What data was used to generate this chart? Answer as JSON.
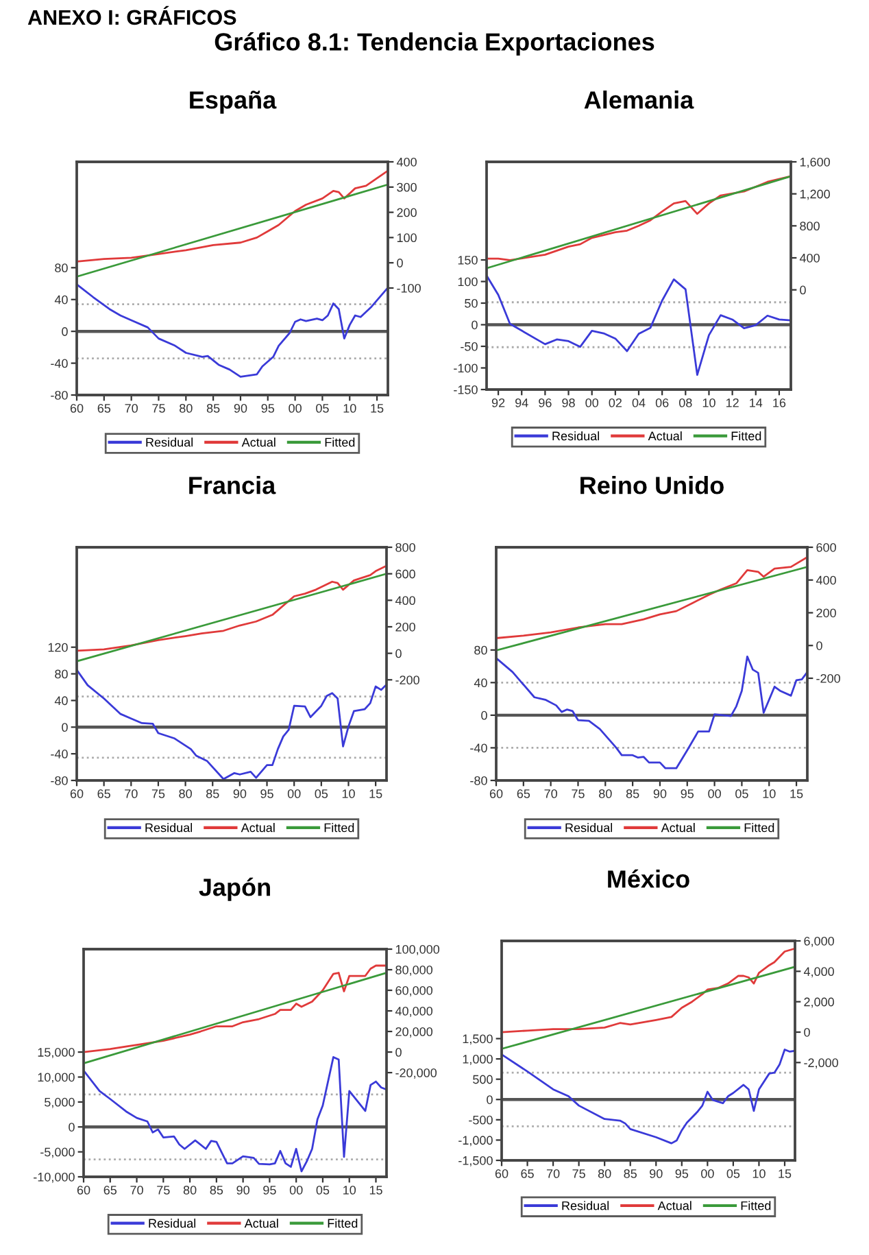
{
  "chart_data": [
    {
      "type": "other",
      "title": "Gráfico 8.1: Tendencia Exportaciones",
      "annotations": [
        "ANEXO I: GRÁFICOS"
      ]
    },
    {
      "type": "line",
      "title": "España",
      "xlim": [
        1960,
        2017
      ],
      "xticks": [
        {
          "value": 1960,
          "label": "60"
        },
        {
          "value": 1965,
          "label": "65"
        },
        {
          "value": 1970,
          "label": "70"
        },
        {
          "value": 1975,
          "label": "75"
        },
        {
          "value": 1980,
          "label": "80"
        },
        {
          "value": 1985,
          "label": "85"
        },
        {
          "value": 1990,
          "label": "90"
        },
        {
          "value": 1995,
          "label": "95"
        },
        {
          "value": 2000,
          "label": "00"
        },
        {
          "value": 2005,
          "label": "05"
        },
        {
          "value": 2010,
          "label": "10"
        },
        {
          "value": 2015,
          "label": "15"
        }
      ],
      "ylim": [
        -80,
        213
      ],
      "yticks": [
        -80,
        -40,
        0,
        40,
        80
      ],
      "y2lim": [
        -524,
        400
      ],
      "y2ticks": [
        -100,
        0,
        100,
        200,
        300,
        400
      ],
      "legend": "bottom",
      "grid": false,
      "series": [
        {
          "name": "Residual",
          "color": "#3a3ad8",
          "x": [
            1960,
            1963,
            1966,
            1968,
            1970,
            1973,
            1975,
            1978,
            1980,
            1983,
            1984,
            1986,
            1988,
            1990,
            1993,
            1994,
            1996,
            1997,
            1999,
            2000,
            2001,
            2002,
            2004,
            2005,
            2006,
            2007,
            2008,
            2009,
            2010,
            2011,
            2012,
            2014,
            2017
          ],
          "values": [
            59,
            43,
            28,
            20,
            14,
            5,
            -9,
            -18,
            -27,
            -32,
            -31,
            -42,
            -48,
            -57,
            -54,
            -44,
            -32,
            -18,
            -2,
            12,
            15,
            13,
            16,
            14,
            20,
            35,
            28,
            -9,
            8,
            20,
            18,
            31,
            55
          ]
        },
        {
          "name": "Actual",
          "color": "#e03a3a",
          "axis": "y2",
          "x": [
            1960,
            1965,
            1970,
            1975,
            1980,
            1985,
            1990,
            1993,
            1995,
            1997,
            2000,
            2002,
            2005,
            2007,
            2008,
            2009,
            2011,
            2013,
            2017
          ],
          "values": [
            5,
            15,
            20,
            35,
            50,
            70,
            80,
            100,
            125,
            150,
            205,
            230,
            255,
            285,
            280,
            255,
            295,
            305,
            365
          ]
        },
        {
          "name": "Fitted",
          "color": "#3a9a3a",
          "axis": "y2",
          "x": [
            1960,
            2017
          ],
          "values": [
            -55,
            310
          ]
        }
      ],
      "ref_lines": [
        {
          "axis": "y",
          "value": 0,
          "color": "#555555",
          "line_style": "solid"
        },
        {
          "axis": "y",
          "value": 34,
          "color": "#aaaaaa",
          "line_style": "dotted"
        },
        {
          "axis": "y",
          "value": -34,
          "color": "#aaaaaa",
          "line_style": "dotted"
        }
      ]
    },
    {
      "type": "line",
      "title": "Alemania",
      "xlim": [
        1991,
        2017
      ],
      "xticks": [
        {
          "value": 1992,
          "label": "92"
        },
        {
          "value": 1994,
          "label": "94"
        },
        {
          "value": 1996,
          "label": "96"
        },
        {
          "value": 1998,
          "label": "98"
        },
        {
          "value": 2000,
          "label": "00"
        },
        {
          "value": 2002,
          "label": "02"
        },
        {
          "value": 2004,
          "label": "04"
        },
        {
          "value": 2006,
          "label": "06"
        },
        {
          "value": 2008,
          "label": "08"
        },
        {
          "value": 2010,
          "label": "10"
        },
        {
          "value": 2012,
          "label": "12"
        },
        {
          "value": 2014,
          "label": "14"
        },
        {
          "value": 2016,
          "label": "16"
        }
      ],
      "ylim": [
        -150,
        377
      ],
      "yticks": [
        -150,
        -100,
        -50,
        0,
        50,
        100,
        150
      ],
      "y2lim": [
        -1246,
        1600
      ],
      "y2ticks": [
        0,
        400,
        800,
        {
          "value": 1200,
          "label": "1,200"
        },
        {
          "value": 1600,
          "label": "1,600"
        }
      ],
      "legend": "bottom",
      "grid": false,
      "series": [
        {
          "name": "Residual",
          "color": "#3a3ad8",
          "x": [
            1991,
            1992,
            1993,
            1996,
            1997,
            1998,
            1999,
            2000,
            2001,
            2002,
            2003,
            2004,
            2005,
            2006,
            2007,
            2008,
            2009,
            2010,
            2011,
            2012,
            2013,
            2014,
            2015,
            2016,
            2017
          ],
          "values": [
            114,
            69,
            2,
            -45,
            -34,
            -38,
            -51,
            -14,
            -20,
            -32,
            -61,
            -21,
            -7,
            56,
            105,
            82,
            -116,
            -24,
            22,
            12,
            -8,
            -1,
            21,
            12,
            10
          ]
        },
        {
          "name": "Actual",
          "color": "#e03a3a",
          "axis": "y2",
          "x": [
            1991,
            1992,
            1993,
            1996,
            1998,
            1999,
            2000,
            2002,
            2003,
            2004,
            2005,
            2006,
            2007,
            2008,
            2009,
            2010,
            2011,
            2013,
            2015,
            2017
          ],
          "values": [
            390,
            390,
            370,
            440,
            540,
            570,
            650,
            720,
            740,
            800,
            870,
            980,
            1080,
            1110,
            950,
            1080,
            1180,
            1230,
            1350,
            1420
          ]
        },
        {
          "name": "Fitted",
          "color": "#3a9a3a",
          "axis": "y2",
          "x": [
            1991,
            2017
          ],
          "values": [
            270,
            1420
          ]
        }
      ],
      "ref_lines": [
        {
          "axis": "y",
          "value": 0,
          "color": "#555555",
          "line_style": "solid"
        },
        {
          "axis": "y",
          "value": 52,
          "color": "#aaaaaa",
          "line_style": "dotted"
        },
        {
          "axis": "y",
          "value": -52,
          "color": "#aaaaaa",
          "line_style": "dotted"
        }
      ]
    },
    {
      "type": "line",
      "title": "Francia",
      "xlim": [
        1960,
        2017
      ],
      "xticks": [
        {
          "value": 1960,
          "label": "60"
        },
        {
          "value": 1965,
          "label": "65"
        },
        {
          "value": 1970,
          "label": "70"
        },
        {
          "value": 1975,
          "label": "75"
        },
        {
          "value": 1980,
          "label": "80"
        },
        {
          "value": 1985,
          "label": "85"
        },
        {
          "value": 1990,
          "label": "90"
        },
        {
          "value": 1995,
          "label": "95"
        },
        {
          "value": 2000,
          "label": "00"
        },
        {
          "value": 2005,
          "label": "05"
        },
        {
          "value": 2010,
          "label": "10"
        },
        {
          "value": 2015,
          "label": "15"
        }
      ],
      "ylim": [
        -80,
        270
      ],
      "yticks": [
        -80,
        -40,
        0,
        40,
        80,
        120
      ],
      "y2lim": [
        -959,
        800
      ],
      "y2ticks": [
        -200,
        0,
        200,
        400,
        600,
        800
      ],
      "legend": "bottom",
      "grid": false,
      "series": [
        {
          "name": "Residual",
          "color": "#3a3ad8",
          "x": [
            1960,
            1962,
            1965,
            1968,
            1970,
            1972,
            1974,
            1975,
            1978,
            1981,
            1982,
            1984,
            1987,
            1989,
            1990,
            1992,
            1993,
            1995,
            1996,
            1997,
            1998,
            1999,
            2000,
            2002,
            2003,
            2005,
            2006,
            2007,
            2008,
            2009,
            2010,
            2011,
            2013,
            2014,
            2015,
            2016,
            2017
          ],
          "values": [
            86,
            63,
            43,
            20,
            13,
            6,
            5,
            -9,
            -17,
            -33,
            -43,
            -51,
            -78,
            -69,
            -71,
            -67,
            -76,
            -57,
            -57,
            -33,
            -14,
            -4,
            32,
            31,
            15,
            32,
            47,
            51,
            43,
            -29,
            1,
            24,
            27,
            36,
            61,
            56,
            64
          ]
        },
        {
          "name": "Actual",
          "color": "#e03a3a",
          "axis": "y2",
          "x": [
            1960,
            1965,
            1970,
            1975,
            1980,
            1983,
            1987,
            1990,
            1993,
            1996,
            2000,
            2002,
            2004,
            2007,
            2008,
            2009,
            2011,
            2014,
            2015,
            2017
          ],
          "values": [
            20,
            30,
            60,
            100,
            130,
            150,
            170,
            210,
            240,
            290,
            430,
            450,
            480,
            540,
            530,
            480,
            550,
            590,
            620,
            660
          ]
        },
        {
          "name": "Fitted",
          "color": "#3a9a3a",
          "axis": "y2",
          "x": [
            1960,
            2017
          ],
          "values": [
            -60,
            600
          ]
        }
      ],
      "ref_lines": [
        {
          "axis": "y",
          "value": 0,
          "color": "#555555",
          "line_style": "solid"
        },
        {
          "axis": "y",
          "value": 46,
          "color": "#aaaaaa",
          "line_style": "dotted"
        },
        {
          "axis": "y",
          "value": -46,
          "color": "#aaaaaa",
          "line_style": "dotted"
        }
      ]
    },
    {
      "type": "line",
      "title": "Reino Unido",
      "xlim": [
        1960,
        2017
      ],
      "xticks": [
        {
          "value": 1960,
          "label": "60"
        },
        {
          "value": 1965,
          "label": "65"
        },
        {
          "value": 1970,
          "label": "70"
        },
        {
          "value": 1975,
          "label": "75"
        },
        {
          "value": 1980,
          "label": "80"
        },
        {
          "value": 1985,
          "label": "85"
        },
        {
          "value": 1990,
          "label": "90"
        },
        {
          "value": 1995,
          "label": "95"
        },
        {
          "value": 2000,
          "label": "00"
        },
        {
          "value": 2005,
          "label": "05"
        },
        {
          "value": 2010,
          "label": "10"
        },
        {
          "value": 2015,
          "label": "15"
        }
      ],
      "ylim": [
        -80,
        206
      ],
      "yticks": [
        -80,
        -40,
        0,
        40,
        80
      ],
      "y2lim": [
        -824,
        600
      ],
      "y2ticks": [
        -200,
        0,
        200,
        400,
        600
      ],
      "legend": "bottom",
      "grid": false,
      "series": [
        {
          "name": "Residual",
          "color": "#3a3ad8",
          "x": [
            1960,
            1963,
            1967,
            1969,
            1971,
            1972,
            1973,
            1974,
            1975,
            1977,
            1979,
            1982,
            1983,
            1985,
            1986,
            1987,
            1988,
            1990,
            1991,
            1993,
            1995,
            1997,
            1999,
            2000,
            2003,
            2004,
            2005,
            2006,
            2007,
            2008,
            2009,
            2011,
            2012,
            2014,
            2015,
            2016,
            2017
          ],
          "values": [
            70,
            53,
            22,
            19,
            12,
            4,
            7,
            5,
            -6,
            -7,
            -17,
            -40,
            -49,
            -49,
            -52,
            -51,
            -58,
            -58,
            -65,
            -65,
            -43,
            -20,
            -20,
            1,
            -1,
            11,
            30,
            72,
            56,
            52,
            3,
            35,
            30,
            24,
            43,
            44,
            53
          ]
        },
        {
          "name": "Actual",
          "color": "#e03a3a",
          "axis": "y2",
          "x": [
            1960,
            1965,
            1970,
            1975,
            1980,
            1983,
            1987,
            1990,
            1993,
            1996,
            1999,
            2001,
            2004,
            2006,
            2008,
            2009,
            2011,
            2014,
            2017
          ],
          "values": [
            45,
            60,
            80,
            110,
            130,
            130,
            160,
            190,
            210,
            260,
            310,
            340,
            380,
            460,
            450,
            420,
            470,
            480,
            540
          ]
        },
        {
          "name": "Fitted",
          "color": "#3a9a3a",
          "axis": "y2",
          "x": [
            1960,
            2017
          ],
          "values": [
            -30,
            480
          ]
        }
      ],
      "ref_lines": [
        {
          "axis": "y",
          "value": 0,
          "color": "#555555",
          "line_style": "solid"
        },
        {
          "axis": "y",
          "value": 40,
          "color": "#aaaaaa",
          "line_style": "dotted"
        },
        {
          "axis": "y",
          "value": -40,
          "color": "#aaaaaa",
          "line_style": "dotted"
        }
      ]
    },
    {
      "type": "line",
      "title": "Japón",
      "xlim": [
        1960,
        2017
      ],
      "xticks": [
        {
          "value": 1960,
          "label": "60"
        },
        {
          "value": 1965,
          "label": "65"
        },
        {
          "value": 1970,
          "label": "70"
        },
        {
          "value": 1975,
          "label": "75"
        },
        {
          "value": 1980,
          "label": "80"
        },
        {
          "value": 1985,
          "label": "85"
        },
        {
          "value": 1990,
          "label": "90"
        },
        {
          "value": 1995,
          "label": "95"
        },
        {
          "value": 2000,
          "label": "00"
        },
        {
          "value": 2005,
          "label": "05"
        },
        {
          "value": 2010,
          "label": "10"
        },
        {
          "value": 2015,
          "label": "15"
        }
      ],
      "ylim": [
        -10000,
        35636
      ],
      "yticks": [
        {
          "value": -10000,
          "label": "-10,000"
        },
        {
          "value": -5000,
          "label": "-5,000"
        },
        0,
        {
          "value": 5000,
          "label": "5,000"
        },
        {
          "value": 10000,
          "label": "10,000"
        },
        {
          "value": 15000,
          "label": "15,000"
        }
      ],
      "y2lim": [
        -121239,
        100000
      ],
      "y2ticks": [
        {
          "value": -20000,
          "label": "-20,000"
        },
        0,
        {
          "value": 20000,
          "label": "20,000"
        },
        {
          "value": 40000,
          "label": "40,000"
        },
        {
          "value": 60000,
          "label": "60,000"
        },
        {
          "value": 80000,
          "label": "80,000"
        },
        {
          "value": 100000,
          "label": "100,000"
        }
      ],
      "legend": "bottom",
      "grid": false,
      "series": [
        {
          "name": "Residual",
          "color": "#3a3ad8",
          "x": [
            1960,
            1963,
            1965,
            1968,
            1970,
            1972,
            1973,
            1974,
            1975,
            1977,
            1978,
            1979,
            1981,
            1983,
            1984,
            1985,
            1987,
            1988,
            1990,
            1992,
            1993,
            1995,
            1996,
            1997,
            1998,
            1999,
            2000,
            2001,
            2002,
            2003,
            2004,
            2005,
            2007,
            2008,
            2009,
            2010,
            2013,
            2014,
            2015,
            2016,
            2017
          ],
          "values": [
            11300,
            7200,
            5600,
            3100,
            1800,
            1100,
            -1100,
            -500,
            -2100,
            -1900,
            -3500,
            -4400,
            -2700,
            -4400,
            -2800,
            -3000,
            -7300,
            -7300,
            -5900,
            -6200,
            -7400,
            -7500,
            -7300,
            -4800,
            -7300,
            -8000,
            -4400,
            -8900,
            -6900,
            -4400,
            1500,
            4300,
            14000,
            13500,
            -6000,
            7200,
            3200,
            8400,
            9100,
            7900,
            7500
          ]
        },
        {
          "name": "Actual",
          "color": "#e03a3a",
          "axis": "y2",
          "x": [
            1960,
            1965,
            1970,
            1975,
            1980,
            1982,
            1985,
            1988,
            1990,
            1993,
            1996,
            1997,
            1999,
            2000,
            2001,
            2003,
            2005,
            2007,
            2008,
            2009,
            2010,
            2013,
            2014,
            2015,
            2017
          ],
          "values": [
            0,
            3000,
            7000,
            11000,
            17000,
            20000,
            25000,
            25000,
            29000,
            32000,
            37000,
            41000,
            41000,
            47000,
            44000,
            49000,
            60000,
            76000,
            77000,
            59000,
            74000,
            74000,
            81000,
            84000,
            84000
          ]
        },
        {
          "name": "Fitted",
          "color": "#3a9a3a",
          "axis": "y2",
          "x": [
            1960,
            2017
          ],
          "values": [
            -11000,
            77000
          ]
        }
      ],
      "ref_lines": [
        {
          "axis": "y",
          "value": 0,
          "color": "#555555",
          "line_style": "solid"
        },
        {
          "axis": "y",
          "value": 6500,
          "color": "#aaaaaa",
          "line_style": "dotted"
        },
        {
          "axis": "y",
          "value": -6500,
          "color": "#aaaaaa",
          "line_style": "dotted"
        }
      ]
    },
    {
      "type": "line",
      "title": "México",
      "xlim": [
        1960,
        2017
      ],
      "xticks": [
        {
          "value": 1960,
          "label": "60"
        },
        {
          "value": 1965,
          "label": "65"
        },
        {
          "value": 1970,
          "label": "70"
        },
        {
          "value": 1975,
          "label": "75"
        },
        {
          "value": 1980,
          "label": "80"
        },
        {
          "value": 1985,
          "label": "85"
        },
        {
          "value": 1990,
          "label": "90"
        },
        {
          "value": 1995,
          "label": "95"
        },
        {
          "value": 2000,
          "label": "00"
        },
        {
          "value": 2005,
          "label": "05"
        },
        {
          "value": 2010,
          "label": "10"
        },
        {
          "value": 2015,
          "label": "15"
        }
      ],
      "ylim": [
        -1500,
        3908
      ],
      "yticks": [
        {
          "value": -1500,
          "label": "-1,500"
        },
        {
          "value": -1000,
          "label": "-1,000"
        },
        -500,
        0,
        500,
        {
          "value": 1000,
          "label": "1,000"
        },
        {
          "value": 1500,
          "label": "1,500"
        }
      ],
      "y2lim": [
        -8434,
        6000
      ],
      "y2ticks": [
        {
          "value": -2000,
          "label": "-2,000"
        },
        0,
        {
          "value": 2000,
          "label": "2,000"
        },
        {
          "value": 4000,
          "label": "4,000"
        },
        {
          "value": 6000,
          "label": "6,000"
        }
      ],
      "legend": "bottom",
      "grid": false,
      "series": [
        {
          "name": "Residual",
          "color": "#3a3ad8",
          "x": [
            1960,
            1965,
            1970,
            1973,
            1975,
            1980,
            1983,
            1984,
            1985,
            1990,
            1993,
            1994,
            1995,
            1996,
            1998,
            1999,
            2000,
            2001,
            2003,
            2004,
            2005,
            2007,
            2008,
            2009,
            2010,
            2012,
            2013,
            2014,
            2015,
            2016,
            2017
          ],
          "values": [
            1110,
            690,
            250,
            80,
            -150,
            -480,
            -520,
            -590,
            -730,
            -930,
            -1080,
            -1010,
            -760,
            -570,
            -310,
            -150,
            190,
            -10,
            -90,
            80,
            160,
            360,
            250,
            -280,
            250,
            640,
            660,
            860,
            1230,
            1180,
            1200
          ]
        },
        {
          "name": "Actual",
          "color": "#e03a3a",
          "axis": "y2",
          "x": [
            1960,
            1965,
            1970,
            1975,
            1980,
            1983,
            1985,
            1990,
            1993,
            1995,
            1997,
            1999,
            2000,
            2002,
            2004,
            2006,
            2007,
            2008,
            2009,
            2010,
            2012,
            2013,
            2015,
            2017
          ],
          "values": [
            0,
            100,
            200,
            200,
            300,
            600,
            500,
            800,
            1000,
            1600,
            2000,
            2500,
            2800,
            2900,
            3200,
            3700,
            3700,
            3600,
            3200,
            3900,
            4400,
            4600,
            5300,
            5500
          ]
        },
        {
          "name": "Fitted",
          "color": "#3a9a3a",
          "axis": "y2",
          "x": [
            1960,
            2017
          ],
          "values": [
            -1100,
            4300
          ]
        }
      ],
      "ref_lines": [
        {
          "axis": "y",
          "value": 0,
          "color": "#555555",
          "line_style": "solid"
        },
        {
          "axis": "y",
          "value": 660,
          "color": "#aaaaaa",
          "line_style": "dotted"
        },
        {
          "axis": "y",
          "value": -660,
          "color": "#aaaaaa",
          "line_style": "dotted"
        }
      ]
    }
  ]
}
